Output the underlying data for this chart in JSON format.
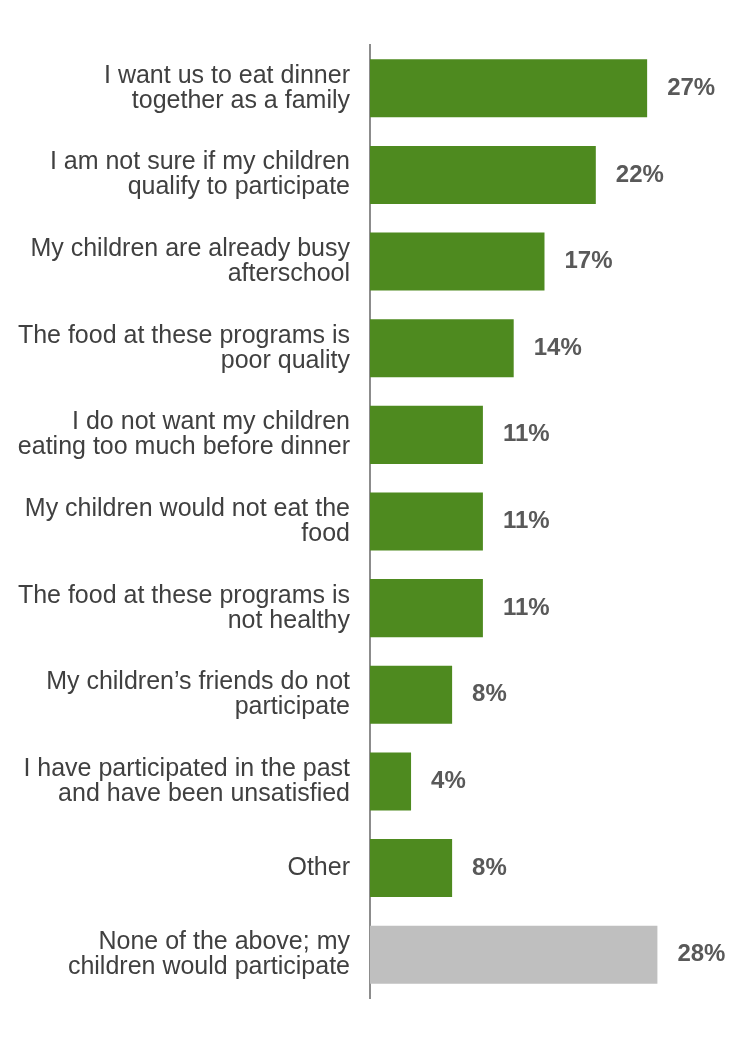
{
  "chart_data": {
    "type": "bar",
    "orientation": "horizontal",
    "tick_labels": "y",
    "categories": [
      "I want us to eat dinner together as a family",
      "I am not sure if my children qualify to participate",
      "My children are already busy afterschool",
      "The food at these programs is poor quality",
      "I do not want my children eating too much before dinner",
      "My children would not eat the food",
      "The food at these programs is not healthy",
      "My children’s friends do not participate",
      "I have participated in the past and have been unsatisfied",
      "Other",
      "None of the above; my children would participate"
    ],
    "values": [
      27,
      22,
      17,
      14,
      11,
      11,
      11,
      8,
      4,
      8,
      28
    ],
    "colors": [
      "#4e8a1f",
      "#4e8a1f",
      "#4e8a1f",
      "#4e8a1f",
      "#4e8a1f",
      "#4e8a1f",
      "#4e8a1f",
      "#4e8a1f",
      "#4e8a1f",
      "#4e8a1f",
      "#bfbfbf"
    ],
    "value_labels": [
      "27%",
      "22%",
      "17%",
      "14%",
      "11%",
      "11%",
      "11%",
      "8%",
      "4%",
      "8%",
      "28%"
    ]
  }
}
